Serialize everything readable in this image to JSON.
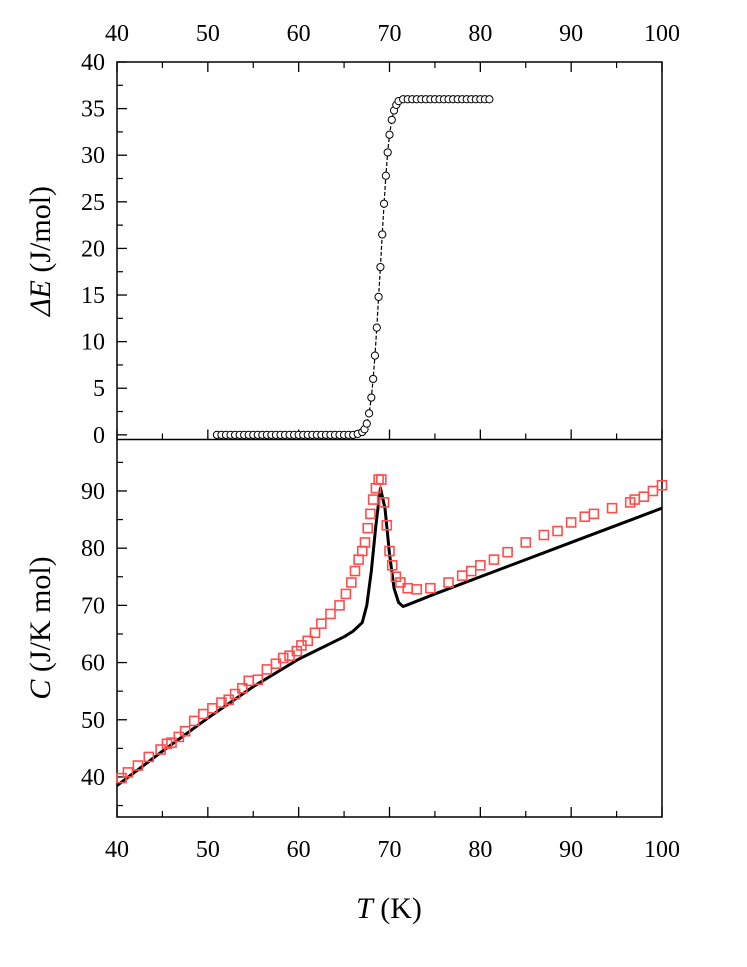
{
  "chart_data": [
    {
      "type": "scatter",
      "panel": "top",
      "ylabel_main": "ΔE",
      "ylabel_unit": " (J/mol)",
      "xlim": [
        40,
        100
      ],
      "ylim": [
        -0.5,
        40
      ],
      "x_ticks": [
        "40",
        "50",
        "60",
        "70",
        "80",
        "90",
        "100"
      ],
      "y_ticks": [
        "0",
        "5",
        "10",
        "15",
        "20",
        "25",
        "30",
        "35",
        "40"
      ],
      "grid": false,
      "series": [
        {
          "marker": "open-circle",
          "color": "#000000",
          "x": [
            51.0,
            51.5,
            52.0,
            52.5,
            53.0,
            53.5,
            54.0,
            54.5,
            55.0,
            55.5,
            56.0,
            56.5,
            57.0,
            57.5,
            58.0,
            58.5,
            59.0,
            59.5,
            60.0,
            60.5,
            61.0,
            61.5,
            62.0,
            62.5,
            63.0,
            63.5,
            64.0,
            64.5,
            65.0,
            65.5,
            66.0,
            66.5,
            67.0,
            67.25,
            67.5,
            67.75,
            68.0,
            68.2,
            68.4,
            68.6,
            68.8,
            69.0,
            69.2,
            69.4,
            69.6,
            69.8,
            70.0,
            70.25,
            70.5,
            70.75,
            71.0,
            71.5,
            72.0,
            72.5,
            73.0,
            73.5,
            74.0,
            74.5,
            75.0,
            75.5,
            76.0,
            76.5,
            77.0,
            77.5,
            78.0,
            78.5,
            79.0,
            79.5,
            80.0,
            80.5,
            81.0
          ],
          "y": [
            0,
            0,
            0,
            0,
            0,
            0,
            0,
            0,
            0,
            0,
            0,
            0,
            0,
            0,
            0,
            0,
            0,
            0,
            0,
            0,
            0,
            0,
            0,
            0,
            0,
            0,
            0,
            0,
            0,
            0,
            0,
            0.1,
            0.3,
            0.6,
            1.2,
            2.3,
            4.0,
            6.0,
            8.5,
            11.5,
            14.8,
            18.0,
            21.5,
            24.8,
            27.8,
            30.3,
            32.2,
            33.8,
            34.8,
            35.4,
            35.8,
            36.0,
            36.0,
            36.0,
            36.0,
            36.0,
            36.0,
            36.0,
            36.0,
            36.0,
            36.0,
            36.0,
            36.0,
            36.0,
            36.0,
            36.0,
            36.0,
            36.0,
            36.0,
            36.0,
            36.0
          ]
        }
      ]
    },
    {
      "type": "line",
      "panel": "bottom",
      "ylabel_main": "C",
      "ylabel_unit": " (J/K mol)",
      "xlabel_main": "T",
      "xlabel_unit": " (K)",
      "xlim": [
        40,
        100
      ],
      "ylim": [
        33,
        99
      ],
      "x_ticks": [
        "40",
        "50",
        "60",
        "70",
        "80",
        "90",
        "100"
      ],
      "y_ticks": [
        "40",
        "50",
        "60",
        "70",
        "80",
        "90"
      ],
      "grid": false,
      "series": [
        {
          "kind": "line",
          "color": "#000000",
          "x": [
            40,
            45,
            50,
            55,
            60,
            65,
            66,
            67,
            67.5,
            68,
            68.5,
            69,
            69.5,
            70,
            70.5,
            71,
            71.5,
            72,
            75,
            80,
            85,
            90,
            95,
            100
          ],
          "y": [
            38.5,
            44.5,
            50.3,
            55.8,
            60.6,
            64.5,
            65.5,
            67.0,
            70.0,
            76.0,
            84.0,
            90.5,
            87.0,
            79.0,
            73.0,
            70.5,
            69.8,
            70.1,
            72.0,
            75.0,
            78.0,
            81.0,
            84.0,
            87.0
          ]
        },
        {
          "kind": "scatter",
          "marker": "open-square",
          "color": "#ff4d4d",
          "x": [
            40.5,
            41.2,
            42.3,
            43.5,
            44.8,
            45.5,
            46.0,
            46.8,
            47.5,
            48.5,
            49.5,
            50.5,
            51.5,
            52.3,
            53.0,
            53.8,
            54.5,
            55.5,
            56.5,
            57.5,
            58.3,
            59.0,
            59.8,
            60.3,
            61.0,
            61.8,
            62.5,
            63.5,
            64.5,
            65.2,
            65.8,
            66.2,
            66.6,
            67.0,
            67.3,
            67.6,
            67.9,
            68.2,
            68.5,
            68.8,
            69.1,
            69.4,
            69.7,
            70.0,
            70.3,
            70.7,
            71.2,
            72.0,
            73.0,
            74.5,
            76.5,
            78.0,
            79.0,
            80.0,
            81.5,
            83.0,
            85.0,
            87.0,
            88.5,
            90.0,
            91.5,
            92.5,
            94.5,
            96.5,
            97.0,
            98.0,
            99.0,
            100.0
          ],
          "y": [
            39.8,
            40.8,
            42.0,
            43.5,
            44.8,
            45.8,
            46.0,
            47.0,
            48.0,
            49.8,
            51.0,
            52.0,
            53.0,
            53.5,
            54.5,
            55.5,
            56.8,
            57.0,
            58.8,
            59.8,
            60.8,
            61.2,
            62.0,
            63.0,
            63.8,
            65.2,
            66.8,
            68.5,
            70.0,
            72.0,
            74.0,
            76.0,
            78.0,
            79.5,
            81.0,
            83.5,
            86.0,
            88.5,
            90.5,
            92.0,
            92.0,
            88.0,
            84.0,
            79.5,
            77.0,
            75.0,
            74.0,
            73.0,
            72.8,
            73.0,
            74.0,
            75.2,
            76.0,
            77.0,
            78.0,
            79.3,
            81.0,
            82.3,
            83.0,
            84.5,
            85.5,
            86.0,
            87.0,
            88.0,
            88.5,
            89.0,
            90.0,
            91.0
          ]
        }
      ]
    }
  ]
}
